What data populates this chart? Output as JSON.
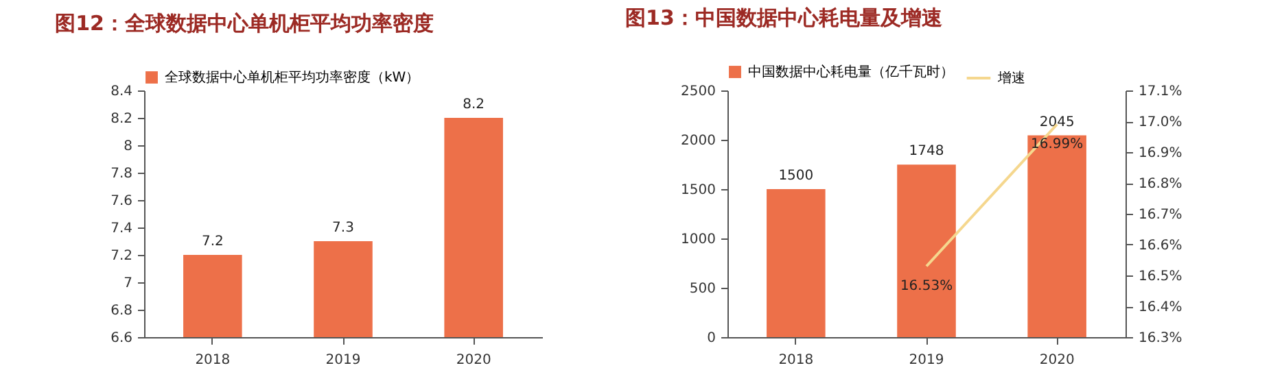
{
  "chart_data": [
    {
      "type": "bar",
      "title": "图12：全球数据中心单机柜平均功率密度",
      "categories": [
        "2018",
        "2019",
        "2020"
      ],
      "series": [
        {
          "name": "全球数据中心单机柜平均功率密度（kW）",
          "color": "#ed7049",
          "values": [
            7.2,
            7.3,
            8.2
          ]
        }
      ],
      "ylim": [
        6.6,
        8.4
      ],
      "yticks": [
        6.6,
        6.8,
        7,
        7.2,
        7.4,
        7.6,
        7.8,
        8,
        8.2,
        8.4
      ],
      "data_labels": true,
      "legend": "top"
    },
    {
      "type": "bar",
      "title": "图13：中国数据中心耗电量及增速",
      "categories": [
        "2018",
        "2019",
        "2020"
      ],
      "series": [
        {
          "name": "中国数据中心耗电量（亿千瓦时）",
          "color": "#ed7049",
          "values": [
            1500,
            1748,
            2045
          ]
        },
        {
          "name": "增速",
          "type": "line",
          "axis": "y2",
          "color": "#f5d78e",
          "values": [
            null,
            16.53,
            16.99
          ],
          "value_labels": [
            null,
            "16.53%",
            "16.99%"
          ]
        }
      ],
      "ylim": [
        0,
        2500
      ],
      "yticks": [
        0,
        500,
        1000,
        1500,
        2000,
        2500
      ],
      "data_labels": true,
      "legend": "top",
      "y2lim": [
        16.3,
        17.1
      ],
      "y2ticks": [
        {
          "value": 16.3,
          "label": "16.3%"
        },
        {
          "value": 16.4,
          "label": "16.4%"
        },
        {
          "value": 16.5,
          "label": "16.5%"
        },
        {
          "value": 16.6,
          "label": "16.6%"
        },
        {
          "value": 16.7,
          "label": "16.7%"
        },
        {
          "value": 16.8,
          "label": "16.8%"
        },
        {
          "value": 16.9,
          "label": "16.9%"
        },
        {
          "value": 17.0,
          "label": "17.0%"
        },
        {
          "value": 17.1,
          "label": "17.1%"
        }
      ]
    }
  ]
}
